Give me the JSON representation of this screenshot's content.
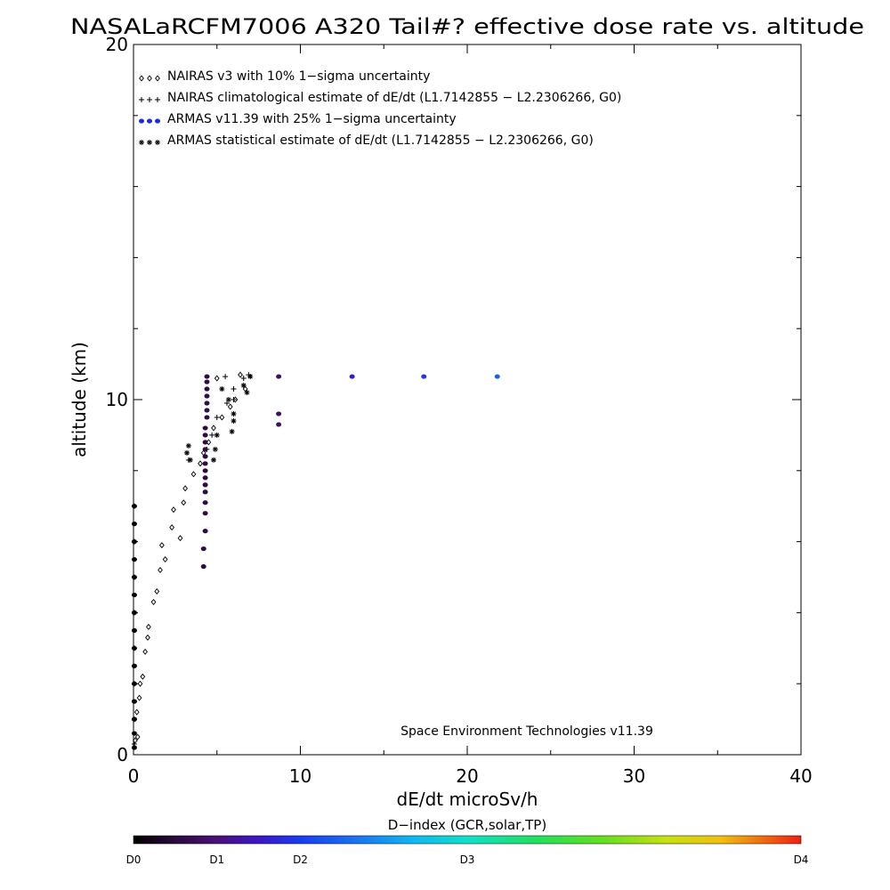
{
  "chart_data": {
    "type": "scatter",
    "title": "NASALaRCFM7006  A320 Tail#? effective dose rate vs. altitude",
    "xlabel": "dE/dt microSv/h",
    "ylabel": "altitude (km)",
    "xlim": [
      0,
      40
    ],
    "ylim": [
      0,
      20
    ],
    "x_ticks": [
      "0",
      "10",
      "20",
      "30",
      "40"
    ],
    "y_ticks": [
      "0",
      "10",
      "20"
    ],
    "grid": false,
    "legend_position": "top-left",
    "credit": "Space Environment Technologies v11.39",
    "colorbar": {
      "title": "D−index (GCR,solar,TP)",
      "labels": [
        {
          "text": "D0",
          "value": 0.0
        },
        {
          "text": "D1",
          "value": 0.125
        },
        {
          "text": "D2",
          "value": 0.25
        },
        {
          "text": "D3",
          "value": 0.5
        },
        {
          "text": "D4",
          "value": 1.0
        }
      ]
    },
    "series": [
      {
        "name": "NAIRAS v3 with 10% 1−sigma uncertainty",
        "symbol": "diamond",
        "color": "#000000",
        "points": [
          [
            0.1,
            0.4
          ],
          [
            0.25,
            0.5
          ],
          [
            0.2,
            1.2
          ],
          [
            0.35,
            1.6
          ],
          [
            0.4,
            2.0
          ],
          [
            0.55,
            2.2
          ],
          [
            0.7,
            2.9
          ],
          [
            0.85,
            3.3
          ],
          [
            0.9,
            3.6
          ],
          [
            1.2,
            4.3
          ],
          [
            1.4,
            4.6
          ],
          [
            1.6,
            5.2
          ],
          [
            1.9,
            5.5
          ],
          [
            1.7,
            5.9
          ],
          [
            2.3,
            6.4
          ],
          [
            2.8,
            6.1
          ],
          [
            2.4,
            6.9
          ],
          [
            3.0,
            7.1
          ],
          [
            3.1,
            7.5
          ],
          [
            3.6,
            7.9
          ],
          [
            4.0,
            8.2
          ],
          [
            4.2,
            8.5
          ],
          [
            4.5,
            8.8
          ],
          [
            4.8,
            9.2
          ],
          [
            5.3,
            9.5
          ],
          [
            5.8,
            9.8
          ],
          [
            6.1,
            10.0
          ],
          [
            6.7,
            10.3
          ],
          [
            5.0,
            10.6
          ],
          [
            6.4,
            10.7
          ]
        ]
      },
      {
        "name": "NAIRAS climatological estimate of dE/dt (L1.7142855 − L2.2306266, G0)",
        "symbol": "plus",
        "color": "#000000",
        "points": [
          [
            0.05,
            0.3
          ],
          [
            0.05,
            1.0
          ],
          [
            0.05,
            2.0
          ],
          [
            0.05,
            3.0
          ],
          [
            0.05,
            4.0
          ],
          [
            0.05,
            5.0
          ],
          [
            0.05,
            6.0
          ],
          [
            0.05,
            7.0
          ],
          [
            3.3,
            8.3
          ],
          [
            4.4,
            8.6
          ],
          [
            4.7,
            9.0
          ],
          [
            5.0,
            9.5
          ],
          [
            5.6,
            9.9
          ],
          [
            6.0,
            10.0
          ],
          [
            6.0,
            10.3
          ],
          [
            6.6,
            10.6
          ],
          [
            5.5,
            10.65
          ],
          [
            6.9,
            10.7
          ]
        ]
      },
      {
        "name": "ARMAS v11.39 with 25% 1−sigma uncertainty",
        "symbol": "dot",
        "color": "#1a2fd8",
        "points": [
          {
            "x": 0.05,
            "y": 0.2,
            "d": 0.0
          },
          {
            "x": 0.05,
            "y": 0.6,
            "d": 0.0
          },
          {
            "x": 0.05,
            "y": 1.0,
            "d": 0.0
          },
          {
            "x": 0.05,
            "y": 1.5,
            "d": 0.0
          },
          {
            "x": 0.05,
            "y": 2.0,
            "d": 0.0
          },
          {
            "x": 0.05,
            "y": 2.5,
            "d": 0.0
          },
          {
            "x": 0.05,
            "y": 3.0,
            "d": 0.0
          },
          {
            "x": 0.05,
            "y": 3.5,
            "d": 0.0
          },
          {
            "x": 0.05,
            "y": 4.0,
            "d": 0.0
          },
          {
            "x": 0.05,
            "y": 4.5,
            "d": 0.0
          },
          {
            "x": 0.05,
            "y": 5.0,
            "d": 0.0
          },
          {
            "x": 0.05,
            "y": 5.5,
            "d": 0.0
          },
          {
            "x": 0.05,
            "y": 6.0,
            "d": 0.0
          },
          {
            "x": 0.05,
            "y": 6.5,
            "d": 0.0
          },
          {
            "x": 0.05,
            "y": 7.0,
            "d": 0.0
          },
          {
            "x": 4.2,
            "y": 5.3,
            "d": 0.07
          },
          {
            "x": 4.2,
            "y": 5.8,
            "d": 0.07
          },
          {
            "x": 4.3,
            "y": 6.3,
            "d": 0.07
          },
          {
            "x": 4.3,
            "y": 6.8,
            "d": 0.07
          },
          {
            "x": 4.3,
            "y": 7.1,
            "d": 0.07
          },
          {
            "x": 4.3,
            "y": 7.4,
            "d": 0.07
          },
          {
            "x": 4.3,
            "y": 7.6,
            "d": 0.07
          },
          {
            "x": 4.3,
            "y": 7.8,
            "d": 0.07
          },
          {
            "x": 4.3,
            "y": 8.0,
            "d": 0.07
          },
          {
            "x": 4.3,
            "y": 8.2,
            "d": 0.07
          },
          {
            "x": 4.3,
            "y": 8.4,
            "d": 0.07
          },
          {
            "x": 4.3,
            "y": 8.6,
            "d": 0.07
          },
          {
            "x": 4.3,
            "y": 8.8,
            "d": 0.07
          },
          {
            "x": 4.3,
            "y": 9.0,
            "d": 0.07
          },
          {
            "x": 4.3,
            "y": 9.2,
            "d": 0.07
          },
          {
            "x": 4.4,
            "y": 9.5,
            "d": 0.07
          },
          {
            "x": 4.4,
            "y": 9.7,
            "d": 0.07
          },
          {
            "x": 4.4,
            "y": 9.9,
            "d": 0.07
          },
          {
            "x": 4.4,
            "y": 10.1,
            "d": 0.07
          },
          {
            "x": 4.4,
            "y": 10.3,
            "d": 0.07
          },
          {
            "x": 4.4,
            "y": 10.5,
            "d": 0.07
          },
          {
            "x": 4.4,
            "y": 10.65,
            "d": 0.07
          },
          {
            "x": 8.7,
            "y": 9.3,
            "d": 0.1
          },
          {
            "x": 8.7,
            "y": 9.6,
            "d": 0.1
          },
          {
            "x": 8.7,
            "y": 10.65,
            "d": 0.1
          },
          {
            "x": 13.1,
            "y": 10.65,
            "d": 0.19
          },
          {
            "x": 17.4,
            "y": 10.65,
            "d": 0.24
          },
          {
            "x": 21.8,
            "y": 10.65,
            "d": 0.3
          }
        ]
      },
      {
        "name": "ARMAS statistical estimate of dE/dt (L1.7142855 − L2.2306266, G0)",
        "symbol": "asterisk",
        "color": "#000000",
        "points": [
          [
            3.3,
            8.7
          ],
          [
            3.2,
            8.5
          ],
          [
            3.4,
            8.3
          ],
          [
            4.8,
            8.3
          ],
          [
            4.9,
            8.6
          ],
          [
            5.0,
            9.0
          ],
          [
            5.9,
            9.1
          ],
          [
            6.0,
            9.4
          ],
          [
            6.0,
            9.6
          ],
          [
            5.7,
            10.0
          ],
          [
            5.3,
            10.3
          ],
          [
            6.8,
            10.2
          ],
          [
            6.6,
            10.4
          ],
          [
            7.0,
            10.65
          ]
        ]
      }
    ]
  }
}
